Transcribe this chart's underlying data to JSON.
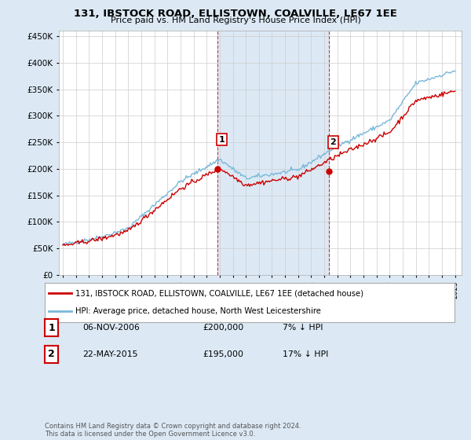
{
  "title": "131, IBSTOCK ROAD, ELLISTOWN, COALVILLE, LE67 1EE",
  "subtitle": "Price paid vs. HM Land Registry's House Price Index (HPI)",
  "legend_line1": "131, IBSTOCK ROAD, ELLISTOWN, COALVILLE, LE67 1EE (detached house)",
  "legend_line2": "HPI: Average price, detached house, North West Leicestershire",
  "transaction1_label": "1",
  "transaction1_date": "06-NOV-2006",
  "transaction1_price": "£200,000",
  "transaction1_hpi": "7% ↓ HPI",
  "transaction2_label": "2",
  "transaction2_date": "22-MAY-2015",
  "transaction2_price": "£195,000",
  "transaction2_hpi": "17% ↓ HPI",
  "footnote": "Contains HM Land Registry data © Crown copyright and database right 2024.\nThis data is licensed under the Open Government Licence v3.0.",
  "ylim": [
    0,
    460000
  ],
  "yticks": [
    0,
    50000,
    100000,
    150000,
    200000,
    250000,
    300000,
    350000,
    400000,
    450000
  ],
  "bg_color": "#dce9f5",
  "plot_bg": "#ffffff",
  "hpi_line_color": "#7ab8d9",
  "price_line_color": "#cc0000",
  "marker_color": "#cc0000",
  "vline_color": "#cc0000",
  "year_start": 1995,
  "year_end": 2025,
  "transaction1_year": 2006.85,
  "transaction2_year": 2015.38
}
